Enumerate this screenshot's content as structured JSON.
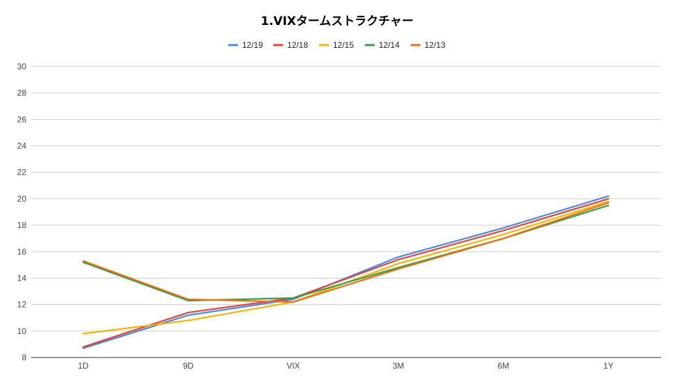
{
  "chart_data": {
    "type": "line",
    "title": "1.VIXタームストラクチャー",
    "xlabel": "",
    "ylabel": "",
    "categories": [
      "1D",
      "9D",
      "VIX",
      "3M",
      "6M",
      "1Y"
    ],
    "ylim": [
      8,
      30
    ],
    "yticks": [
      8,
      10,
      12,
      14,
      16,
      18,
      20,
      22,
      24,
      26,
      28,
      30
    ],
    "grid": true,
    "legend_position": "top",
    "series": [
      {
        "name": "12/19",
        "color": "#4a86e8",
        "values": [
          8.7,
          11.2,
          12.4,
          15.6,
          17.8,
          20.2
        ]
      },
      {
        "name": "12/18",
        "color": "#e0443a",
        "values": [
          8.8,
          11.4,
          12.5,
          15.4,
          17.6,
          20.0
        ]
      },
      {
        "name": "12/15",
        "color": "#f4b400",
        "values": [
          9.8,
          10.8,
          12.2,
          15.1,
          17.3,
          19.8
        ]
      },
      {
        "name": "12/14",
        "color": "#36a047",
        "values": [
          15.2,
          12.3,
          12.5,
          14.8,
          17.0,
          19.5
        ]
      },
      {
        "name": "12/13",
        "color": "#f36c0f",
        "values": [
          15.3,
          12.4,
          12.2,
          14.7,
          17.0,
          19.7
        ]
      }
    ]
  }
}
